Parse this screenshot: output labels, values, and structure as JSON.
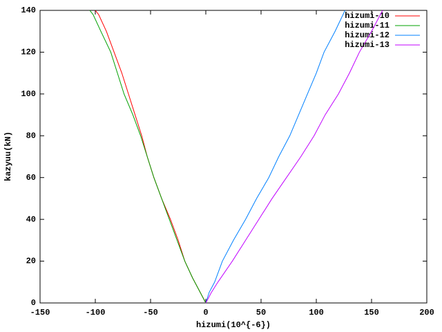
{
  "chart_data": {
    "type": "line",
    "xlabel": "hizumi(10^{-6})",
    "ylabel": "kazyuu(kN)",
    "xlim": [
      -150,
      200
    ],
    "xticks": [
      -150,
      -100,
      -50,
      0,
      50,
      100,
      150,
      200
    ],
    "ylim": [
      0,
      140
    ],
    "yticks": [
      0,
      20,
      40,
      60,
      80,
      100,
      120,
      140
    ],
    "legend": "top-right",
    "series": [
      {
        "name": "hizumi-10",
        "color": "#ff0000",
        "x": [
          0,
          -5,
          -12,
          -19,
          -25,
          -32,
          -40,
          -47,
          -53,
          -58,
          -64,
          -70,
          -76,
          -83,
          -90,
          -97,
          -100
        ],
        "values": [
          0,
          5,
          12,
          20,
          30,
          40,
          50,
          60,
          70,
          80,
          90,
          100,
          110,
          120,
          130,
          138,
          140
        ]
      },
      {
        "name": "hizumi-11",
        "color": "#00a000",
        "x": [
          0,
          -6,
          -12,
          -19,
          -26,
          -33,
          -40,
          -47,
          -53,
          -59,
          -66,
          -74,
          -80,
          -86,
          -95,
          -102,
          -105
        ],
        "values": [
          0,
          6,
          12,
          20,
          30,
          40,
          50,
          60,
          70,
          80,
          90,
          100,
          110,
          120,
          130,
          138,
          140
        ]
      },
      {
        "name": "hizumi-12",
        "color": "#0080ff",
        "x": [
          0,
          3,
          8,
          15,
          25,
          36,
          46,
          57,
          66,
          76,
          84,
          92,
          100,
          107,
          117,
          126
        ],
        "values": [
          0,
          5,
          10,
          20,
          30,
          40,
          50,
          60,
          70,
          80,
          90,
          100,
          110,
          120,
          130,
          140
        ]
      },
      {
        "name": "hizumi-13",
        "color": "#c000ff",
        "x": [
          0,
          5,
          11,
          24,
          36,
          48,
          60,
          73,
          86,
          98,
          108,
          120,
          130,
          139,
          150,
          160
        ],
        "values": [
          0,
          5,
          10,
          20,
          30,
          40,
          50,
          60,
          70,
          80,
          90,
          100,
          110,
          120,
          130,
          140
        ]
      }
    ]
  }
}
